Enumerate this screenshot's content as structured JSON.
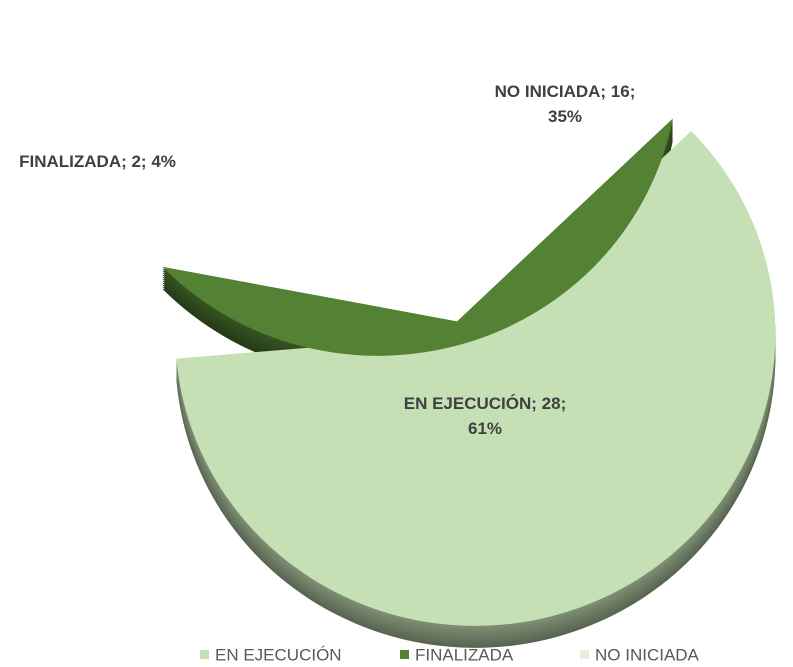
{
  "chart_data": {
    "type": "pie",
    "categories": [
      "EN EJECUCIÓN",
      "FINALIZADA",
      "NO INICIADA"
    ],
    "values": [
      28,
      2,
      16
    ],
    "value_labels": [
      "EN EJECUCIÓN; 28; 61%",
      "FINALIZADA; 2; 4%",
      "NO INICIADA; 16; 35%"
    ],
    "colors": [
      "#c5e0b4",
      "#548235",
      "#e2f0d9"
    ],
    "legend": "bottom"
  }
}
